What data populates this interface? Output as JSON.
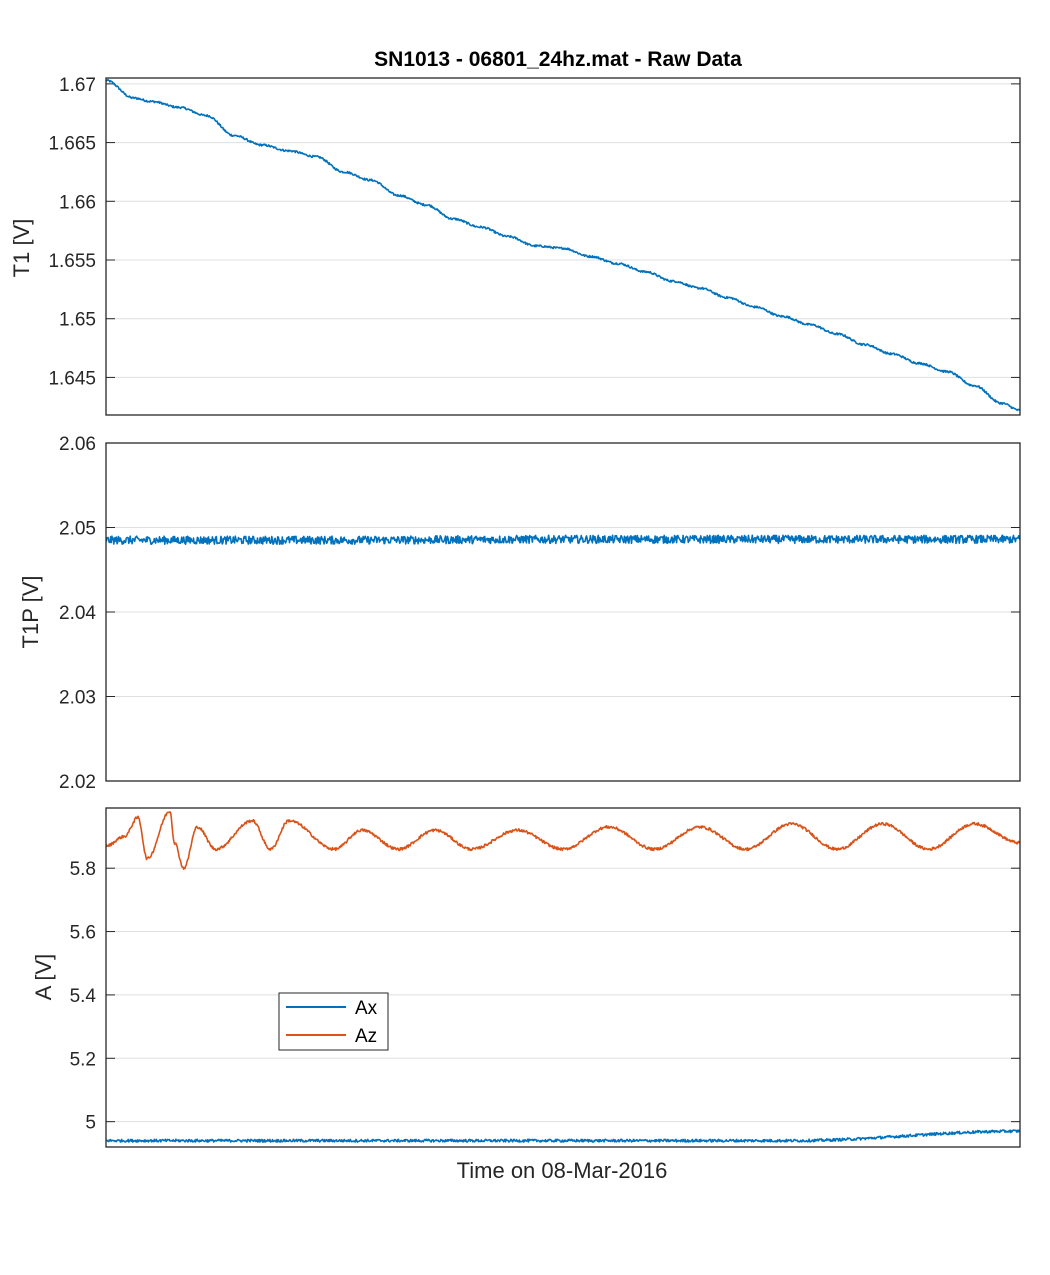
{
  "figure": {
    "title": "SN1013 - 06801_24hz.mat - Raw Data",
    "xlabel": "Time on 08-Mar-2016"
  },
  "colors": {
    "blue": "#0072BD",
    "orange": "#D95319",
    "grid": "#DFDFDF",
    "axis": "#262626"
  },
  "chart_data": [
    {
      "type": "line",
      "ylabel": "T1 [V]",
      "ylim": [
        1.6418,
        1.6705
      ],
      "yticks": [
        "1.645",
        "1.65",
        "1.655",
        "1.66",
        "1.665",
        "1.67"
      ],
      "yticks_values": [
        1.645,
        1.65,
        1.655,
        1.66,
        1.665,
        1.67
      ],
      "grid": true,
      "series": [
        {
          "color": "#0072BD",
          "x": [
            0,
            0.03,
            0.05,
            0.08,
            0.11,
            0.14,
            0.17,
            0.2,
            0.23,
            0.26,
            0.29,
            0.32,
            0.35,
            0.38,
            0.41,
            0.44,
            0.47,
            0.5,
            0.53,
            0.56,
            0.59,
            0.62,
            0.65,
            0.68,
            0.71,
            0.74,
            0.77,
            0.8,
            0.83,
            0.86,
            0.89,
            0.92,
            0.95,
            0.98,
            1.0
          ],
          "y": [
            1.6703,
            1.6688,
            1.6685,
            1.668,
            1.6673,
            1.6656,
            1.6648,
            1.6643,
            1.6638,
            1.6625,
            1.6618,
            1.6605,
            1.6597,
            1.6585,
            1.6578,
            1.657,
            1.6562,
            1.656,
            1.6553,
            1.6547,
            1.654,
            1.6532,
            1.6526,
            1.6518,
            1.651,
            1.6502,
            1.6495,
            1.6487,
            1.6478,
            1.647,
            1.6462,
            1.6455,
            1.6443,
            1.6428,
            1.6422
          ]
        }
      ]
    },
    {
      "type": "line",
      "ylabel": "T1P [V]",
      "ylim": [
        2.02,
        2.06
      ],
      "yticks": [
        "2.02",
        "2.03",
        "2.04",
        "2.05",
        "2.06"
      ],
      "yticks_values": [
        2.02,
        2.03,
        2.04,
        2.05,
        2.06
      ],
      "grid": true,
      "series": [
        {
          "color": "#0072BD",
          "x": [
            0,
            0.25,
            0.5,
            0.75,
            1.0
          ],
          "y": [
            2.0485,
            2.0485,
            2.0486,
            2.0486,
            2.0486
          ]
        }
      ]
    },
    {
      "type": "line",
      "ylabel": "A [V]",
      "ylim": [
        4.92,
        5.99
      ],
      "yticks": [
        "5",
        "5.2",
        "5.4",
        "5.6",
        "5.8"
      ],
      "yticks_values": [
        5.0,
        5.2,
        5.4,
        5.6,
        5.8
      ],
      "grid": true,
      "legend": {
        "placement": "lower-left",
        "entries": [
          "Ax",
          "Az"
        ]
      },
      "series": [
        {
          "name": "Ax",
          "color": "#0072BD",
          "x": [
            0,
            0.25,
            0.5,
            0.75,
            1.0
          ],
          "y": [
            4.94,
            4.94,
            4.94,
            4.94,
            4.97
          ]
        },
        {
          "name": "Az",
          "color": "#D95319",
          "x": [
            0,
            0.02,
            0.035,
            0.045,
            0.07,
            0.075,
            0.085,
            0.1,
            0.12,
            0.16,
            0.18,
            0.2,
            0.25,
            0.28,
            0.32,
            0.36,
            0.4,
            0.45,
            0.5,
            0.55,
            0.6,
            0.65,
            0.7,
            0.75,
            0.8,
            0.85,
            0.9,
            0.95,
            1.0
          ],
          "y": [
            5.87,
            5.9,
            5.96,
            5.83,
            5.98,
            5.88,
            5.8,
            5.93,
            5.86,
            5.95,
            5.86,
            5.95,
            5.86,
            5.92,
            5.86,
            5.92,
            5.86,
            5.92,
            5.86,
            5.93,
            5.86,
            5.93,
            5.86,
            5.94,
            5.86,
            5.94,
            5.86,
            5.94,
            5.88
          ]
        }
      ]
    }
  ]
}
